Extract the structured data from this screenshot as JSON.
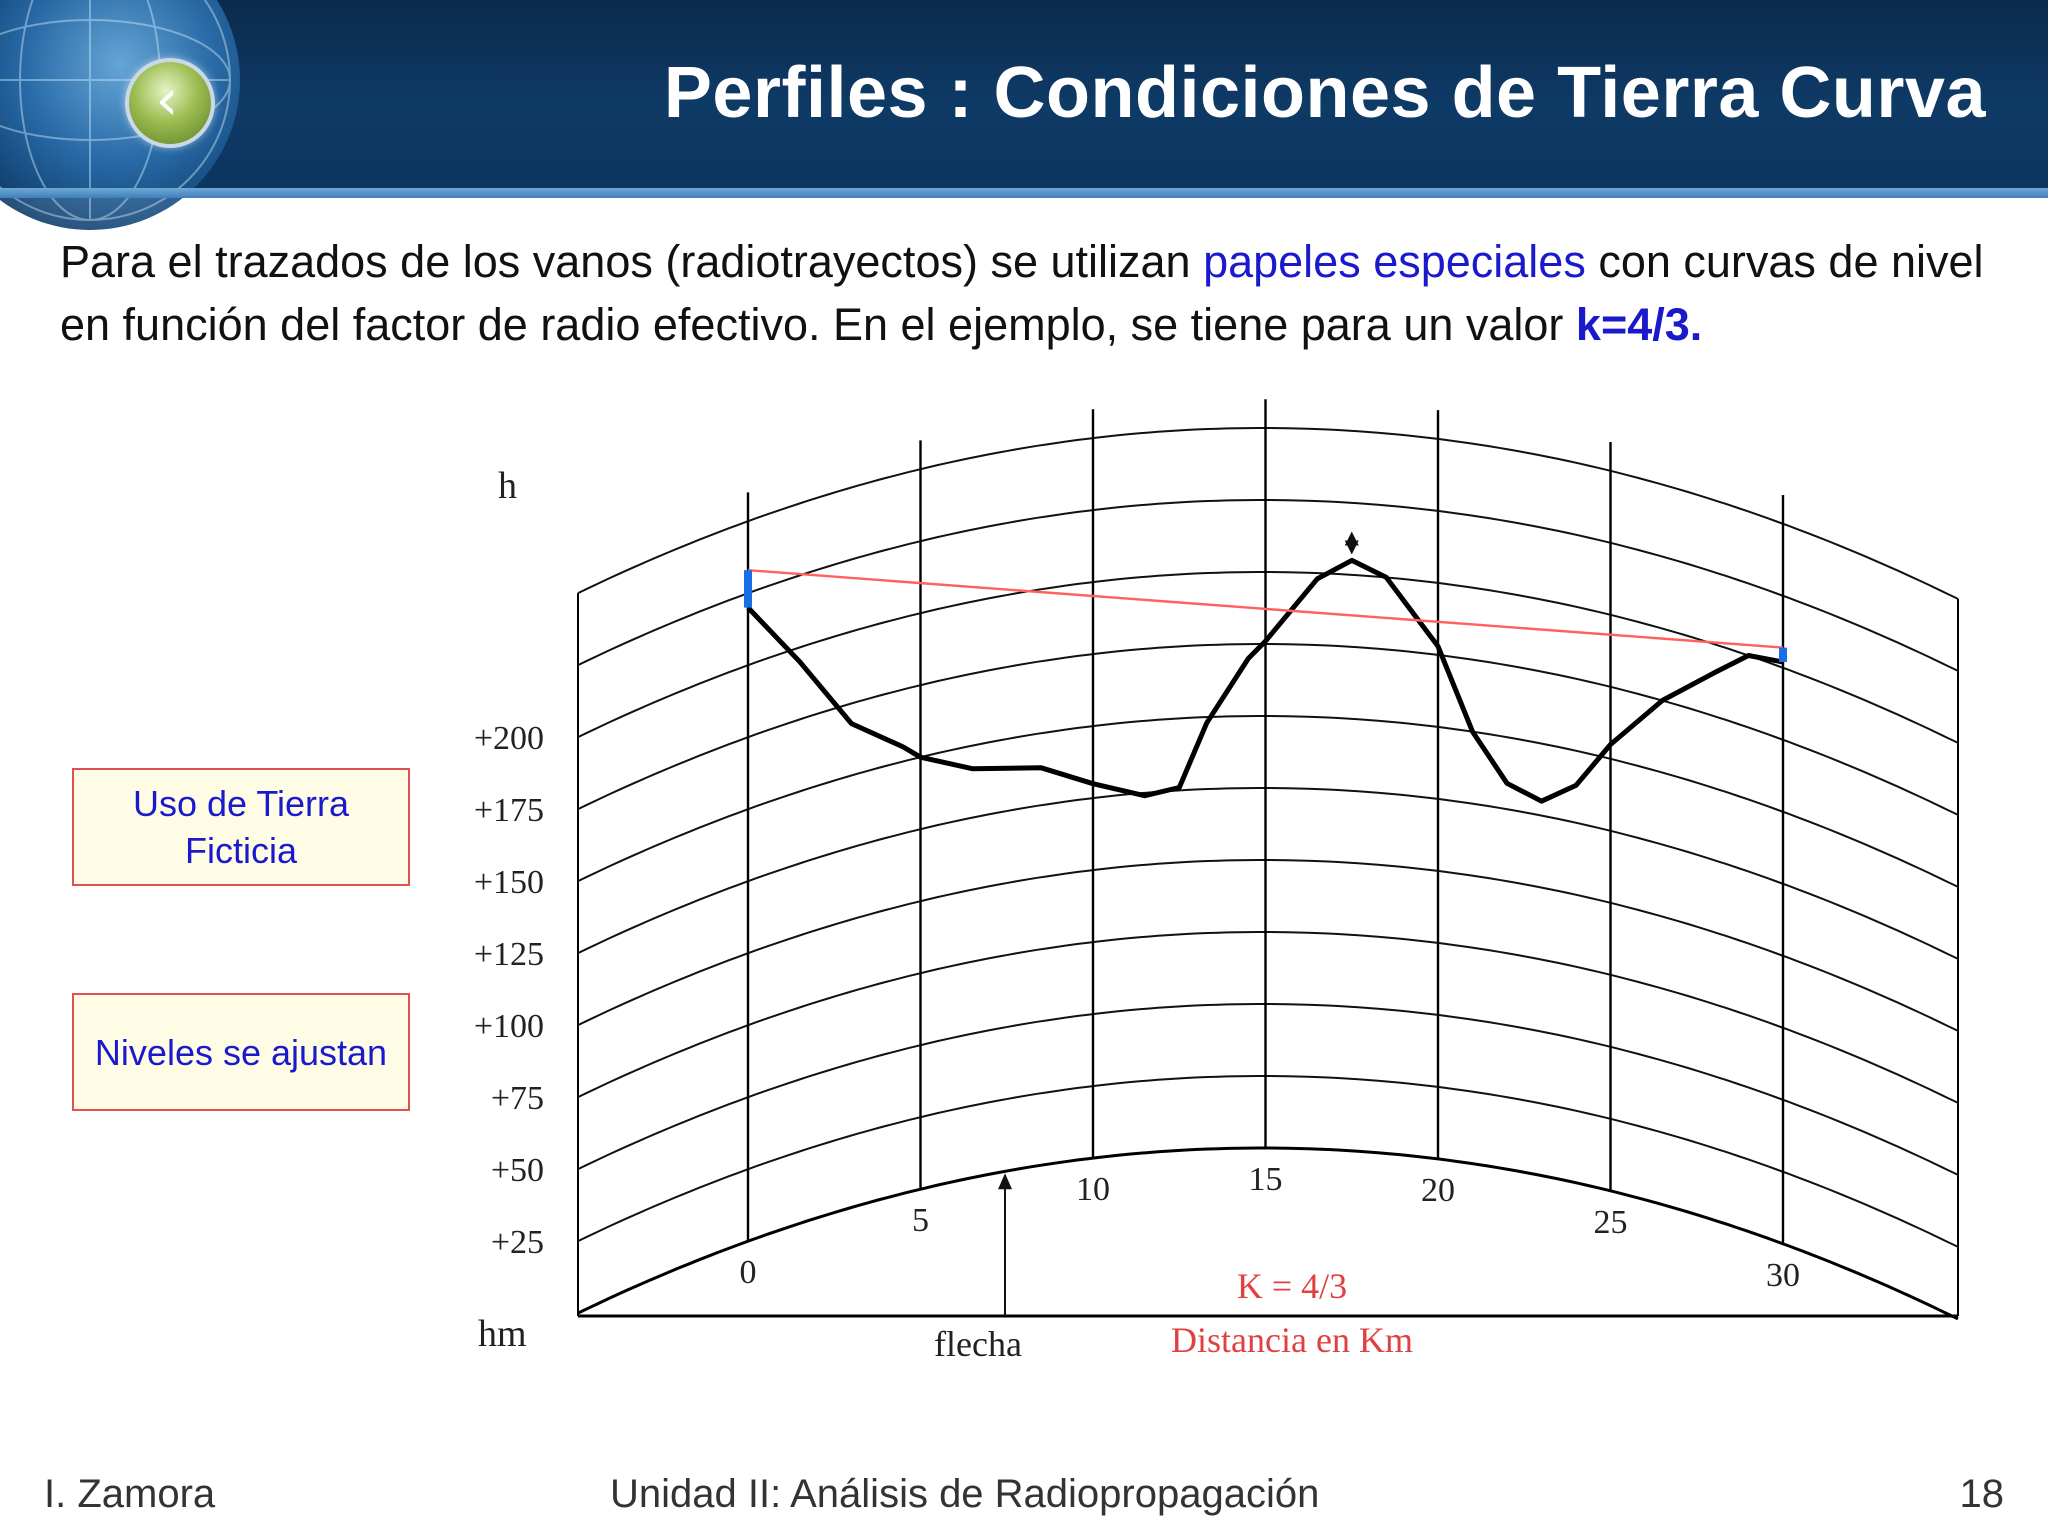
{
  "header": {
    "title": "Perfiles : Condiciones de Tierra Curva",
    "back_icon": "chevron-left-icon"
  },
  "intro": {
    "part1": "Para el trazados de los vanos (radiotrayectos) se utilizan ",
    "highlight": "papeles especiales",
    "part2": " con curvas de nivel en función del factor de radio efectivo. En el ejemplo, se tiene para un valor ",
    "k_value": "k=4/3."
  },
  "notes": [
    {
      "text": "Uso de Tierra Ficticia"
    },
    {
      "text": "Niveles se ajustan"
    }
  ],
  "chart_data": {
    "type": "line",
    "ylabel": "h",
    "baseline_label": "hm",
    "annotation_k": "K = 4/3",
    "xlabel": "Distancia en Km",
    "bulge_label": "flecha",
    "x_ticks": [
      "0",
      "5",
      "10",
      "15",
      "20",
      "25",
      "30"
    ],
    "y_ticks": [
      "+25",
      "+50",
      "+75",
      "+100",
      "+125",
      "+150",
      "+175",
      "+200"
    ],
    "xlim": [
      0,
      35
    ],
    "ylim": [
      0,
      250
    ],
    "colors": {
      "terrain": "#000000",
      "los": "#ff6060",
      "antenna": "#1a6fe6",
      "annotation": "#e04040"
    },
    "terrain": {
      "x": [
        0,
        1.5,
        3,
        4.5,
        5,
        6.5,
        8.5,
        10,
        11.5,
        12.5,
        13.3,
        14.5,
        15,
        16.5,
        17.5,
        18.5,
        20,
        21,
        22,
        23,
        24,
        25,
        26.5,
        28,
        29,
        30
      ],
      "y": [
        220,
        195,
        168,
        155,
        150,
        142,
        138,
        130,
        124,
        126,
        148,
        170,
        176,
        198,
        205,
        200,
        178,
        150,
        134,
        130,
        138,
        155,
        175,
        190,
        200,
        202
      ]
    },
    "line_of_sight": {
      "x": [
        0,
        30
      ],
      "y": [
        233,
        207
      ]
    },
    "antenna_left": {
      "x": 0,
      "y_bottom": 220,
      "y_top": 233
    },
    "antenna_right": {
      "x": 30,
      "y_bottom": 202,
      "y_top": 207
    },
    "clearance_marker": {
      "x": 17.5
    }
  },
  "footer": {
    "author": "I. Zamora",
    "course": "Unidad II: Análisis de Radiopropagación",
    "page": "18"
  }
}
